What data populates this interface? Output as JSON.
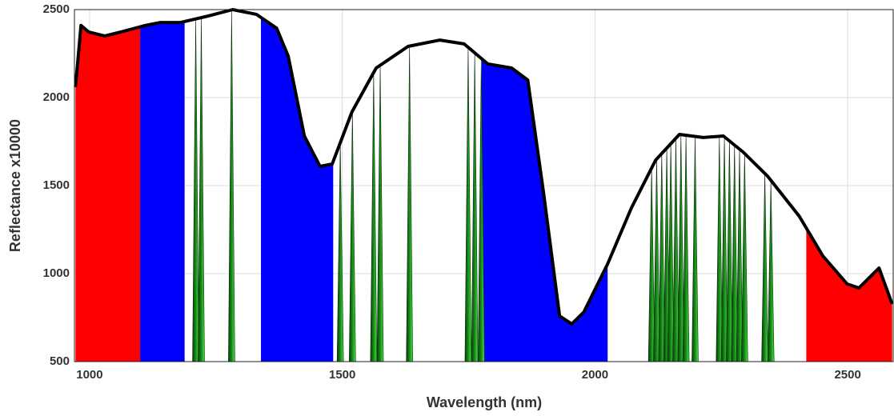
{
  "chart_data": {
    "type": "spectrum",
    "x_label": "Wavelength (nm)",
    "y_label": "Reflectance x10000",
    "xlim": [
      970,
      2590
    ],
    "ylim": [
      500,
      2500
    ],
    "xticks": [
      1000,
      1500,
      2000,
      2500
    ],
    "yticks": [
      500,
      1000,
      1500,
      2000,
      2500
    ],
    "grid": true,
    "line": {
      "color": "#000000",
      "x": [
        972,
        983,
        998,
        1030,
        1062,
        1109,
        1140,
        1180,
        1235,
        1283,
        1330,
        1370,
        1393,
        1425,
        1456,
        1480,
        1519,
        1567,
        1630,
        1693,
        1741,
        1788,
        1835,
        1867,
        1898,
        1930,
        1954,
        1978,
        2025,
        2072,
        2120,
        2167,
        2214,
        2254,
        2293,
        2341,
        2404,
        2451,
        2499,
        2522,
        2546,
        2562,
        2588
      ],
      "values": [
        2060,
        2410,
        2373,
        2350,
        2373,
        2409,
        2427,
        2427,
        2464,
        2500,
        2473,
        2395,
        2236,
        1782,
        1609,
        1623,
        1918,
        2168,
        2291,
        2327,
        2305,
        2191,
        2168,
        2100,
        1464,
        759,
        714,
        782,
        1055,
        1373,
        1645,
        1791,
        1773,
        1782,
        1691,
        1555,
        1327,
        1100,
        941,
        918,
        986,
        1032,
        827
      ]
    },
    "regions": [
      {
        "range": [
          972,
          1100
        ],
        "color": "#ff0000"
      },
      {
        "range": [
          1100,
          1188
        ],
        "color": "#0000ff"
      },
      {
        "range": [
          1339,
          1482
        ],
        "color": "#0000ff"
      },
      {
        "range": [
          1776,
          2025
        ],
        "color": "#0000ff"
      },
      {
        "range": [
          2418,
          2588
        ],
        "color": "#ff0000"
      }
    ],
    "spikes": {
      "color": "#1fae1f",
      "values": [
        1210,
        1221,
        1281,
        1496,
        1520,
        1562,
        1575,
        1633,
        1749,
        1762,
        1775,
        2112,
        2122,
        2132,
        2142,
        2150,
        2160,
        2170,
        2180,
        2198,
        2246,
        2256,
        2266,
        2276,
        2286,
        2296,
        2336,
        2348
      ]
    }
  }
}
